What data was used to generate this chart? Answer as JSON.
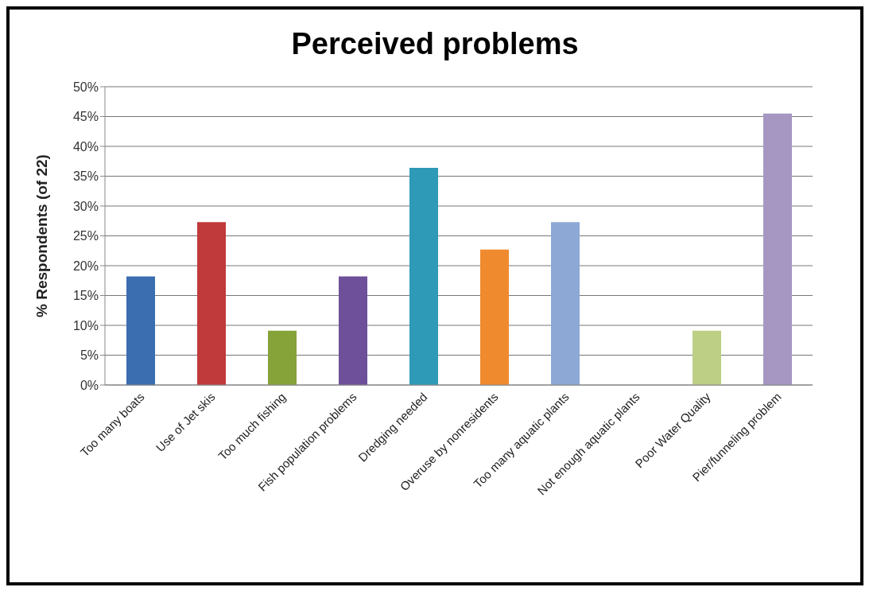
{
  "chart_data": {
    "type": "bar",
    "title": "Perceived problems",
    "ylabel": "% Respondents (of 22)",
    "categories": [
      "Too many boats",
      "Use of Jet skis",
      "Too much fishing",
      "Fish population problems",
      "Dredging needed",
      "Overuse by nonresidents",
      "Too many aquatic plants",
      "Not enough aquatic plants",
      "Poor Water Quality",
      "Pier/funneling problem"
    ],
    "values": [
      18.2,
      27.3,
      9.1,
      18.2,
      36.4,
      22.7,
      27.3,
      0,
      9.1,
      45.5
    ],
    "colors": [
      "#3b6eb0",
      "#c0393b",
      "#86a33a",
      "#6e4f9a",
      "#2e9ab8",
      "#ef8a2e",
      "#8ea8d6",
      "#c8a8d0",
      "#bccf84",
      "#a597c1"
    ],
    "ylim": [
      0,
      50
    ],
    "yticks": [
      {
        "value": 0,
        "label": "0%"
      },
      {
        "value": 5,
        "label": "5%"
      },
      {
        "value": 10,
        "label": "10%"
      },
      {
        "value": 15,
        "label": "15%"
      },
      {
        "value": 20,
        "label": "20%"
      },
      {
        "value": 25,
        "label": "25%"
      },
      {
        "value": 30,
        "label": "30%"
      },
      {
        "value": 35,
        "label": "35%"
      },
      {
        "value": 40,
        "label": "40%"
      },
      {
        "value": 45,
        "label": "45%"
      },
      {
        "value": 50,
        "label": "50%"
      }
    ],
    "grid": "y"
  }
}
